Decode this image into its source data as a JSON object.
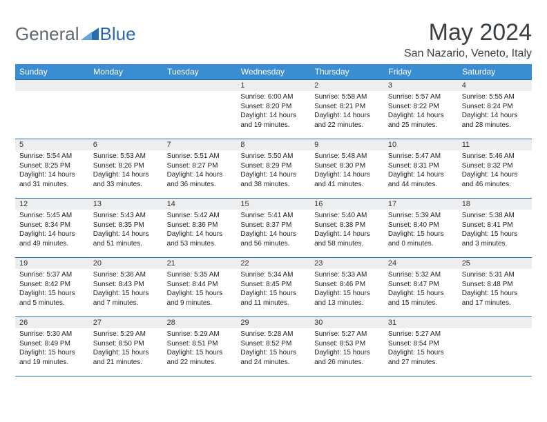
{
  "logo": {
    "part1": "General",
    "part2": "Blue"
  },
  "title": "May 2024",
  "location": "San Nazario, Veneto, Italy",
  "weekdays": [
    "Sunday",
    "Monday",
    "Tuesday",
    "Wednesday",
    "Thursday",
    "Friday",
    "Saturday"
  ],
  "colors": {
    "header_bg": "#3a8dd0",
    "header_text": "#ffffff",
    "band_bg": "#eceeef",
    "band_border": "#2a6ab0",
    "logo_gray": "#5d6770",
    "logo_blue": "#2a6ab0",
    "text": "#222222"
  },
  "weeks": [
    [
      {
        "n": ""
      },
      {
        "n": ""
      },
      {
        "n": ""
      },
      {
        "n": "1",
        "sr": "6:00 AM",
        "ss": "8:20 PM",
        "dy": "14 hours and 19 minutes."
      },
      {
        "n": "2",
        "sr": "5:58 AM",
        "ss": "8:21 PM",
        "dy": "14 hours and 22 minutes."
      },
      {
        "n": "3",
        "sr": "5:57 AM",
        "ss": "8:22 PM",
        "dy": "14 hours and 25 minutes."
      },
      {
        "n": "4",
        "sr": "5:55 AM",
        "ss": "8:24 PM",
        "dy": "14 hours and 28 minutes."
      }
    ],
    [
      {
        "n": "5",
        "sr": "5:54 AM",
        "ss": "8:25 PM",
        "dy": "14 hours and 31 minutes."
      },
      {
        "n": "6",
        "sr": "5:53 AM",
        "ss": "8:26 PM",
        "dy": "14 hours and 33 minutes."
      },
      {
        "n": "7",
        "sr": "5:51 AM",
        "ss": "8:27 PM",
        "dy": "14 hours and 36 minutes."
      },
      {
        "n": "8",
        "sr": "5:50 AM",
        "ss": "8:29 PM",
        "dy": "14 hours and 38 minutes."
      },
      {
        "n": "9",
        "sr": "5:48 AM",
        "ss": "8:30 PM",
        "dy": "14 hours and 41 minutes."
      },
      {
        "n": "10",
        "sr": "5:47 AM",
        "ss": "8:31 PM",
        "dy": "14 hours and 44 minutes."
      },
      {
        "n": "11",
        "sr": "5:46 AM",
        "ss": "8:32 PM",
        "dy": "14 hours and 46 minutes."
      }
    ],
    [
      {
        "n": "12",
        "sr": "5:45 AM",
        "ss": "8:34 PM",
        "dy": "14 hours and 49 minutes."
      },
      {
        "n": "13",
        "sr": "5:43 AM",
        "ss": "8:35 PM",
        "dy": "14 hours and 51 minutes."
      },
      {
        "n": "14",
        "sr": "5:42 AM",
        "ss": "8:36 PM",
        "dy": "14 hours and 53 minutes."
      },
      {
        "n": "15",
        "sr": "5:41 AM",
        "ss": "8:37 PM",
        "dy": "14 hours and 56 minutes."
      },
      {
        "n": "16",
        "sr": "5:40 AM",
        "ss": "8:38 PM",
        "dy": "14 hours and 58 minutes."
      },
      {
        "n": "17",
        "sr": "5:39 AM",
        "ss": "8:40 PM",
        "dy": "15 hours and 0 minutes."
      },
      {
        "n": "18",
        "sr": "5:38 AM",
        "ss": "8:41 PM",
        "dy": "15 hours and 3 minutes."
      }
    ],
    [
      {
        "n": "19",
        "sr": "5:37 AM",
        "ss": "8:42 PM",
        "dy": "15 hours and 5 minutes."
      },
      {
        "n": "20",
        "sr": "5:36 AM",
        "ss": "8:43 PM",
        "dy": "15 hours and 7 minutes."
      },
      {
        "n": "21",
        "sr": "5:35 AM",
        "ss": "8:44 PM",
        "dy": "15 hours and 9 minutes."
      },
      {
        "n": "22",
        "sr": "5:34 AM",
        "ss": "8:45 PM",
        "dy": "15 hours and 11 minutes."
      },
      {
        "n": "23",
        "sr": "5:33 AM",
        "ss": "8:46 PM",
        "dy": "15 hours and 13 minutes."
      },
      {
        "n": "24",
        "sr": "5:32 AM",
        "ss": "8:47 PM",
        "dy": "15 hours and 15 minutes."
      },
      {
        "n": "25",
        "sr": "5:31 AM",
        "ss": "8:48 PM",
        "dy": "15 hours and 17 minutes."
      }
    ],
    [
      {
        "n": "26",
        "sr": "5:30 AM",
        "ss": "8:49 PM",
        "dy": "15 hours and 19 minutes."
      },
      {
        "n": "27",
        "sr": "5:29 AM",
        "ss": "8:50 PM",
        "dy": "15 hours and 21 minutes."
      },
      {
        "n": "28",
        "sr": "5:29 AM",
        "ss": "8:51 PM",
        "dy": "15 hours and 22 minutes."
      },
      {
        "n": "29",
        "sr": "5:28 AM",
        "ss": "8:52 PM",
        "dy": "15 hours and 24 minutes."
      },
      {
        "n": "30",
        "sr": "5:27 AM",
        "ss": "8:53 PM",
        "dy": "15 hours and 26 minutes."
      },
      {
        "n": "31",
        "sr": "5:27 AM",
        "ss": "8:54 PM",
        "dy": "15 hours and 27 minutes."
      },
      {
        "n": ""
      }
    ]
  ],
  "labels": {
    "sunrise": "Sunrise:",
    "sunset": "Sunset:",
    "daylight": "Daylight:"
  }
}
